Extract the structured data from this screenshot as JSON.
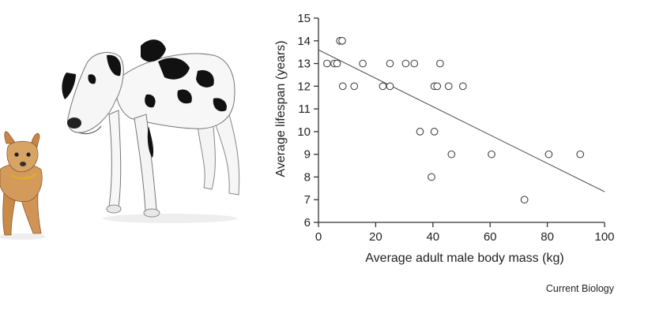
{
  "credit": "Current Biology",
  "illustration": {
    "small_dog": "chihuahua-icon",
    "large_dog": "great-dane-icon"
  },
  "chart_data": {
    "type": "scatter",
    "title": "",
    "xlabel": "Average adult male body mass (kg)",
    "ylabel": "Average lifespan (years)",
    "xlim": [
      0,
      100
    ],
    "ylim": [
      6,
      15
    ],
    "xticks": [
      0,
      20,
      40,
      60,
      80,
      100
    ],
    "yticks": [
      6,
      7,
      8,
      9,
      10,
      11,
      12,
      13,
      14,
      15
    ],
    "grid": false,
    "legend": "none",
    "series": [
      {
        "points": [
          {
            "x": 3,
            "y": 13
          },
          {
            "x": 5.5,
            "y": 13
          },
          {
            "x": 6.5,
            "y": 13
          },
          {
            "x": 7.5,
            "y": 14
          },
          {
            "x": 8.3,
            "y": 14
          },
          {
            "x": 8.5,
            "y": 12
          },
          {
            "x": 12.5,
            "y": 12
          },
          {
            "x": 15.5,
            "y": 13
          },
          {
            "x": 22.5,
            "y": 12
          },
          {
            "x": 25,
            "y": 12
          },
          {
            "x": 25,
            "y": 13
          },
          {
            "x": 30.5,
            "y": 13
          },
          {
            "x": 33.5,
            "y": 13
          },
          {
            "x": 35.5,
            "y": 10
          },
          {
            "x": 39.5,
            "y": 8
          },
          {
            "x": 40.5,
            "y": 10
          },
          {
            "x": 40.5,
            "y": 12
          },
          {
            "x": 41.5,
            "y": 12
          },
          {
            "x": 42.5,
            "y": 13
          },
          {
            "x": 45.5,
            "y": 12
          },
          {
            "x": 46.5,
            "y": 9
          },
          {
            "x": 50.5,
            "y": 12
          },
          {
            "x": 60.5,
            "y": 9
          },
          {
            "x": 72,
            "y": 7
          },
          {
            "x": 80.5,
            "y": 9
          },
          {
            "x": 91.5,
            "y": 9
          }
        ]
      }
    ],
    "trendline": {
      "x": [
        0,
        100
      ],
      "y": [
        13.6,
        7.35
      ]
    }
  }
}
